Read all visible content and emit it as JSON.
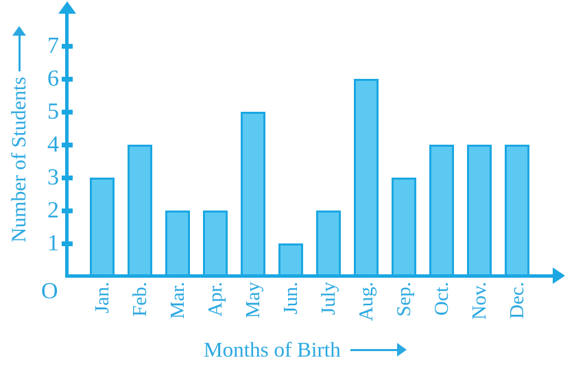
{
  "chart_data": {
    "type": "bar",
    "categories": [
      "Jan.",
      "Feb.",
      "Mar.",
      "Apr.",
      "May",
      "Jun.",
      "July",
      "Aug.",
      "Sep.",
      "Oct.",
      "Nov.",
      "Dec."
    ],
    "values": [
      3,
      4,
      2,
      2,
      5,
      1,
      2,
      6,
      3,
      4,
      4,
      4
    ],
    "title": "",
    "xlabel": "Months of Birth",
    "ylabel": "Number of Students",
    "origin_label": "O",
    "yticks": [
      1,
      2,
      3,
      4,
      5,
      6,
      7
    ],
    "ylim": [
      0,
      8
    ],
    "grid": false,
    "legend": false
  },
  "colors": {
    "stroke": "#1BA7E2",
    "text": "#2BA8E1",
    "bar_fill": "#5CC9F2",
    "background": "#FFFFFF"
  }
}
